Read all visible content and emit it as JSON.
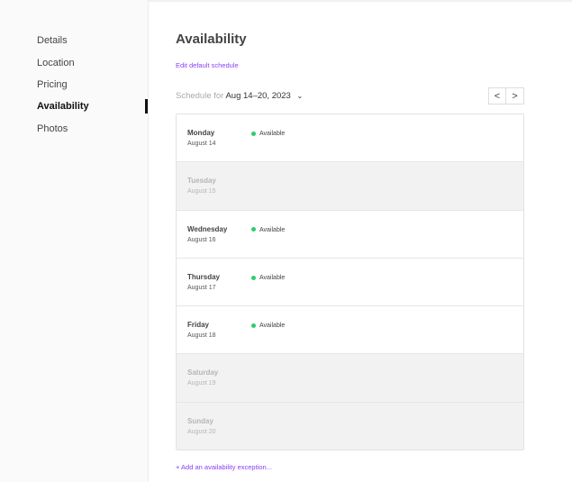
{
  "sidebar": {
    "items": [
      {
        "label": "Details"
      },
      {
        "label": "Location"
      },
      {
        "label": "Pricing"
      },
      {
        "label": "Availability",
        "active": true
      },
      {
        "label": "Photos"
      }
    ]
  },
  "main": {
    "title": "Availability",
    "edit_link": "Edit default schedule",
    "schedule_prefix": "Schedule for",
    "schedule_range": "Aug 14–20, 2023",
    "prev_label": "<",
    "next_label": ">",
    "days": [
      {
        "day": "Monday",
        "date": "August 14",
        "status": "Available"
      },
      {
        "day": "Tuesday",
        "date": "August 15",
        "status": ""
      },
      {
        "day": "Wednesday",
        "date": "August 16",
        "status": "Available"
      },
      {
        "day": "Thursday",
        "date": "August 17",
        "status": "Available"
      },
      {
        "day": "Friday",
        "date": "August 18",
        "status": "Available"
      },
      {
        "day": "Saturday",
        "date": "August 19",
        "status": ""
      },
      {
        "day": "Sunday",
        "date": "August 20",
        "status": ""
      }
    ],
    "add_exception": "+ Add an availability exception..."
  },
  "colors": {
    "accent": "#8b3ff0",
    "available": "#2ecc71"
  }
}
